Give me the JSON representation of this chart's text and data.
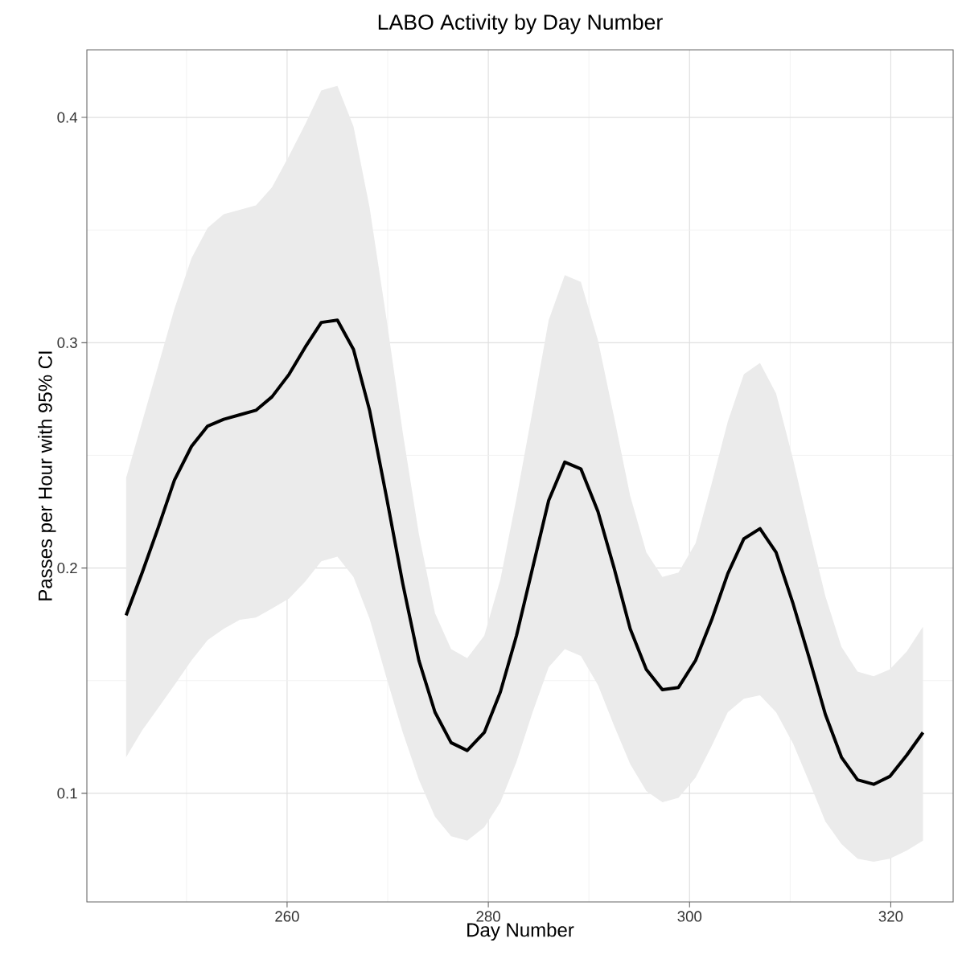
{
  "chart_data": {
    "type": "line",
    "title": "LABO Activity by Day Number",
    "xlabel": "Day Number",
    "ylabel": "Passes per Hour with 95% CI",
    "x": [
      244,
      245.6,
      247.2,
      248.8,
      250.5,
      252.1,
      253.7,
      255.3,
      256.9,
      258.5,
      260.2,
      261.8,
      263.4,
      265,
      266.6,
      268.2,
      269.9,
      271.5,
      273.1,
      274.7,
      276.3,
      277.9,
      279.6,
      281.2,
      282.8,
      284.4,
      286,
      287.6,
      289.2,
      290.9,
      292.5,
      294.1,
      295.7,
      297.3,
      298.9,
      300.6,
      302.2,
      303.8,
      305.4,
      307,
      308.6,
      310.3,
      311.9,
      313.5,
      315.1,
      316.7,
      318.3,
      319.9,
      321.6,
      323.2
    ],
    "series": [
      {
        "color": "#000000",
        "values": [
          0.179,
          0.198,
          0.218,
          0.239,
          0.254,
          0.263,
          0.266,
          0.268,
          0.27,
          0.276,
          0.286,
          0.298,
          0.309,
          0.31,
          0.297,
          0.27,
          0.231,
          0.193,
          0.159,
          0.136,
          0.1225,
          0.119,
          0.127,
          0.145,
          0.17,
          0.2,
          0.23,
          0.247,
          0.244,
          0.225,
          0.2,
          0.173,
          0.155,
          0.146,
          0.147,
          0.159,
          0.177,
          0.1975,
          0.213,
          0.2175,
          0.207,
          0.184,
          0.16,
          0.135,
          0.116,
          0.106,
          0.104,
          0.1075,
          0.117,
          0.127
        ],
        "upper": [
          0.24,
          0.265,
          0.29,
          0.315,
          0.3375,
          0.351,
          0.357,
          0.359,
          0.361,
          0.369,
          0.383,
          0.397,
          0.412,
          0.414,
          0.396,
          0.36,
          0.31,
          0.26,
          0.215,
          0.18,
          0.164,
          0.16,
          0.17,
          0.195,
          0.231,
          0.27,
          0.31,
          0.33,
          0.327,
          0.301,
          0.267,
          0.232,
          0.207,
          0.196,
          0.198,
          0.211,
          0.2375,
          0.265,
          0.286,
          0.291,
          0.2775,
          0.248,
          0.217,
          0.1875,
          0.165,
          0.154,
          0.152,
          0.155,
          0.163,
          0.174
        ],
        "lower": [
          0.116,
          0.128,
          0.138,
          0.148,
          0.159,
          0.168,
          0.173,
          0.177,
          0.178,
          0.182,
          0.1865,
          0.194,
          0.203,
          0.205,
          0.196,
          0.1775,
          0.151,
          0.127,
          0.106,
          0.0896,
          0.081,
          0.079,
          0.085,
          0.096,
          0.114,
          0.136,
          0.156,
          0.164,
          0.161,
          0.148,
          0.13,
          0.113,
          0.101,
          0.096,
          0.098,
          0.107,
          0.121,
          0.136,
          0.142,
          0.1435,
          0.136,
          0.122,
          0.105,
          0.0875,
          0.0775,
          0.071,
          0.0696,
          0.071,
          0.0746,
          0.079
        ]
      }
    ],
    "xlim": [
      240.1,
      326.2
    ],
    "ylim": [
      0.0518,
      0.43
    ],
    "xticks": [
      260,
      280,
      300,
      320
    ],
    "yticks": [
      0.1,
      0.2,
      0.3,
      0.4
    ],
    "grid": true,
    "line_style": "solid",
    "marker": "none"
  }
}
